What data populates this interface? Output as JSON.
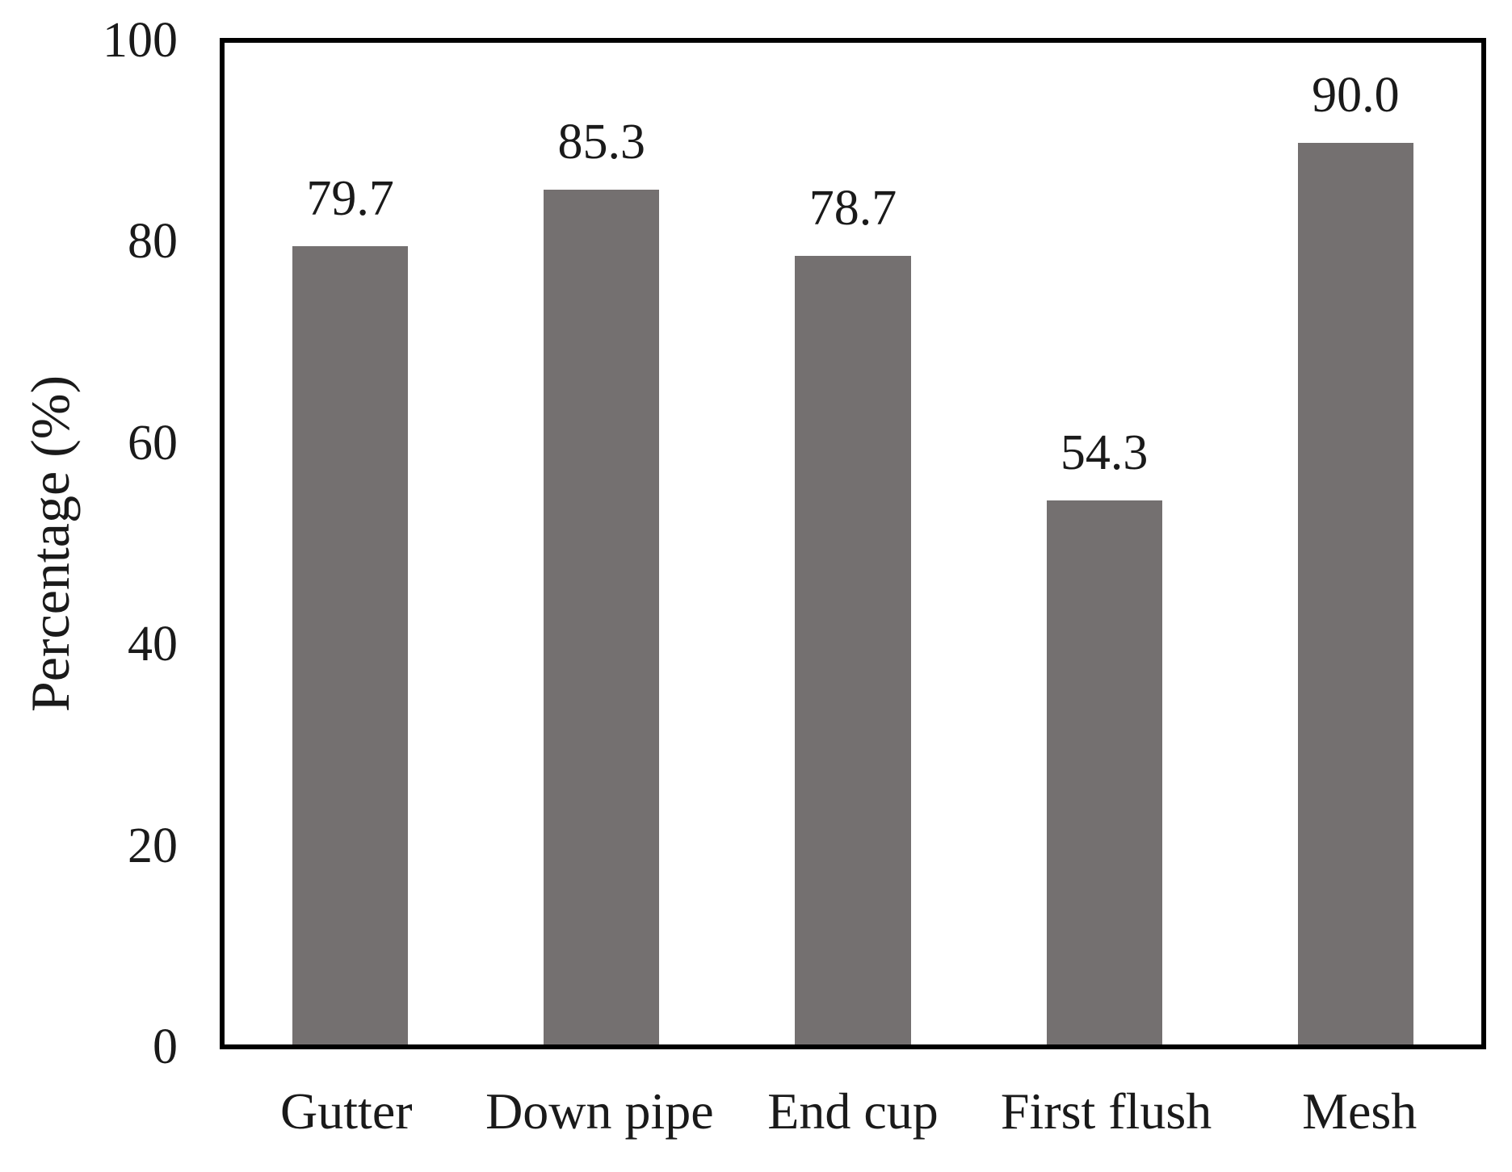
{
  "chart_data": {
    "type": "bar",
    "title": "",
    "categories": [
      "Gutter",
      "Down pipe",
      "End cup",
      "First flush",
      "Mesh"
    ],
    "values": [
      79.7,
      85.3,
      78.7,
      54.3,
      90.0
    ],
    "value_labels": [
      "79.7",
      "85.3",
      "78.7",
      "54.3",
      "90.0"
    ],
    "xlabel": "",
    "ylabel": "Percentage (%)",
    "ylim": [
      0,
      100
    ],
    "yticks": [
      "0",
      "20",
      "40",
      "60",
      "80",
      "100"
    ],
    "grid": false,
    "legend": false,
    "layout": {
      "bar_gap": "bars centered in equal slots, ~46% slot width",
      "value_label_position": "above each bar",
      "axis_frame": "full rectangle border"
    },
    "colors": {
      "bar": "#747070",
      "axis": "#000000",
      "text": "#1a1a1a",
      "background": "#ffffff"
    }
  }
}
